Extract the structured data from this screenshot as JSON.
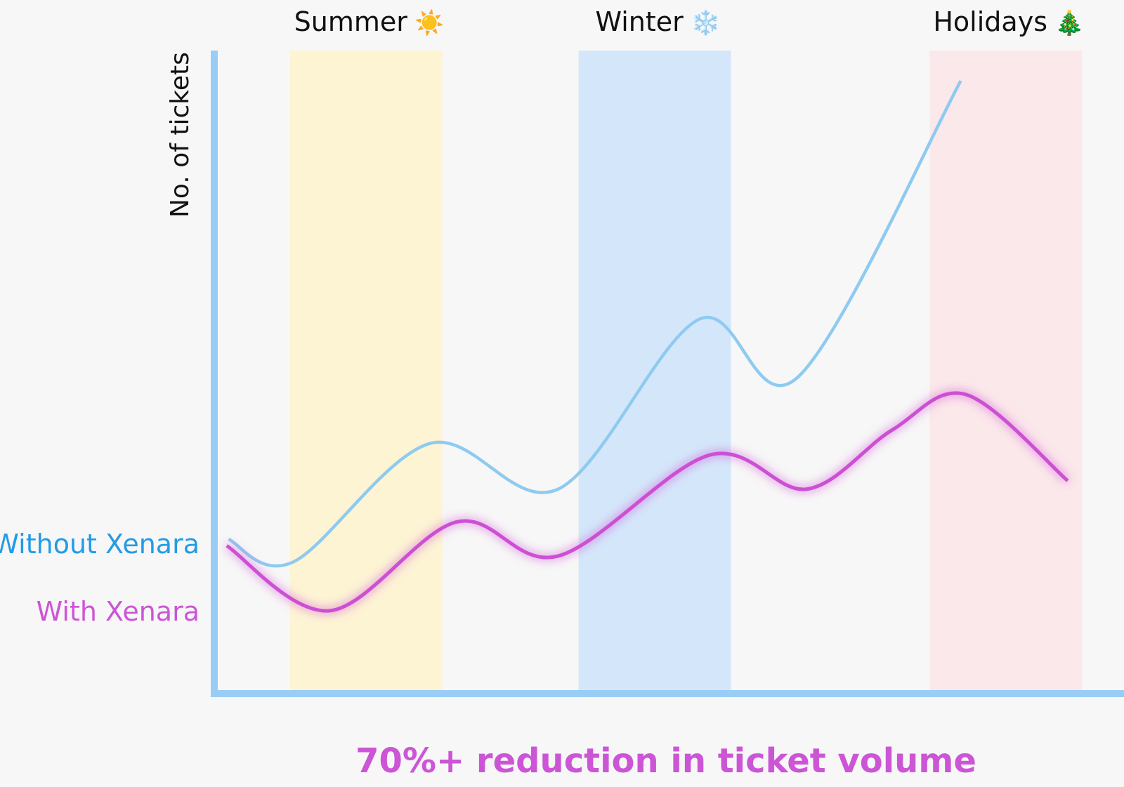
{
  "chart_data": {
    "type": "line",
    "title": "",
    "xlabel": "",
    "ylabel": "No. of tickets",
    "xlim": [
      0,
      100
    ],
    "ylim": [
      0,
      100
    ],
    "grid": false,
    "headline": "70%+ reduction in ticket volume",
    "bands": [
      {
        "label": "Summer",
        "icon": "sun",
        "emoji": "☀️",
        "x0": 8.9,
        "x1": 26.0,
        "color": "#fdf3cf"
      },
      {
        "label": "Winter",
        "icon": "snowflake",
        "emoji": "❄️",
        "x0": 41.3,
        "x1": 58.4,
        "color": "#cfe4f9"
      },
      {
        "label": "Holidays",
        "icon": "christmas-tree",
        "emoji": "🎄",
        "x0": 80.7,
        "x1": 97.8,
        "color": "#fbe6e8"
      }
    ],
    "series": [
      {
        "name": "Without Xenara",
        "color": "#8fcaf0",
        "label_color": "#239be6",
        "x": [
          2.0,
          9.3,
          24.6,
          39.0,
          54.8,
          65.9,
          84.2
        ],
        "y": [
          24.0,
          20.5,
          38.9,
          31.8,
          58.2,
          49.2,
          95.3
        ]
      },
      {
        "name": "With Xenara",
        "color": "#cc4fd4",
        "label_color": "#cc55d6",
        "x": [
          1.8,
          13.4,
          27.6,
          39.0,
          56.0,
          66.9,
          76.5,
          84.8,
          96.2
        ],
        "y": [
          23.0,
          12.9,
          26.7,
          21.4,
          37.1,
          31.8,
          41.0,
          46.5,
          33.1
        ]
      }
    ],
    "axis_color": "#99cdf5"
  }
}
